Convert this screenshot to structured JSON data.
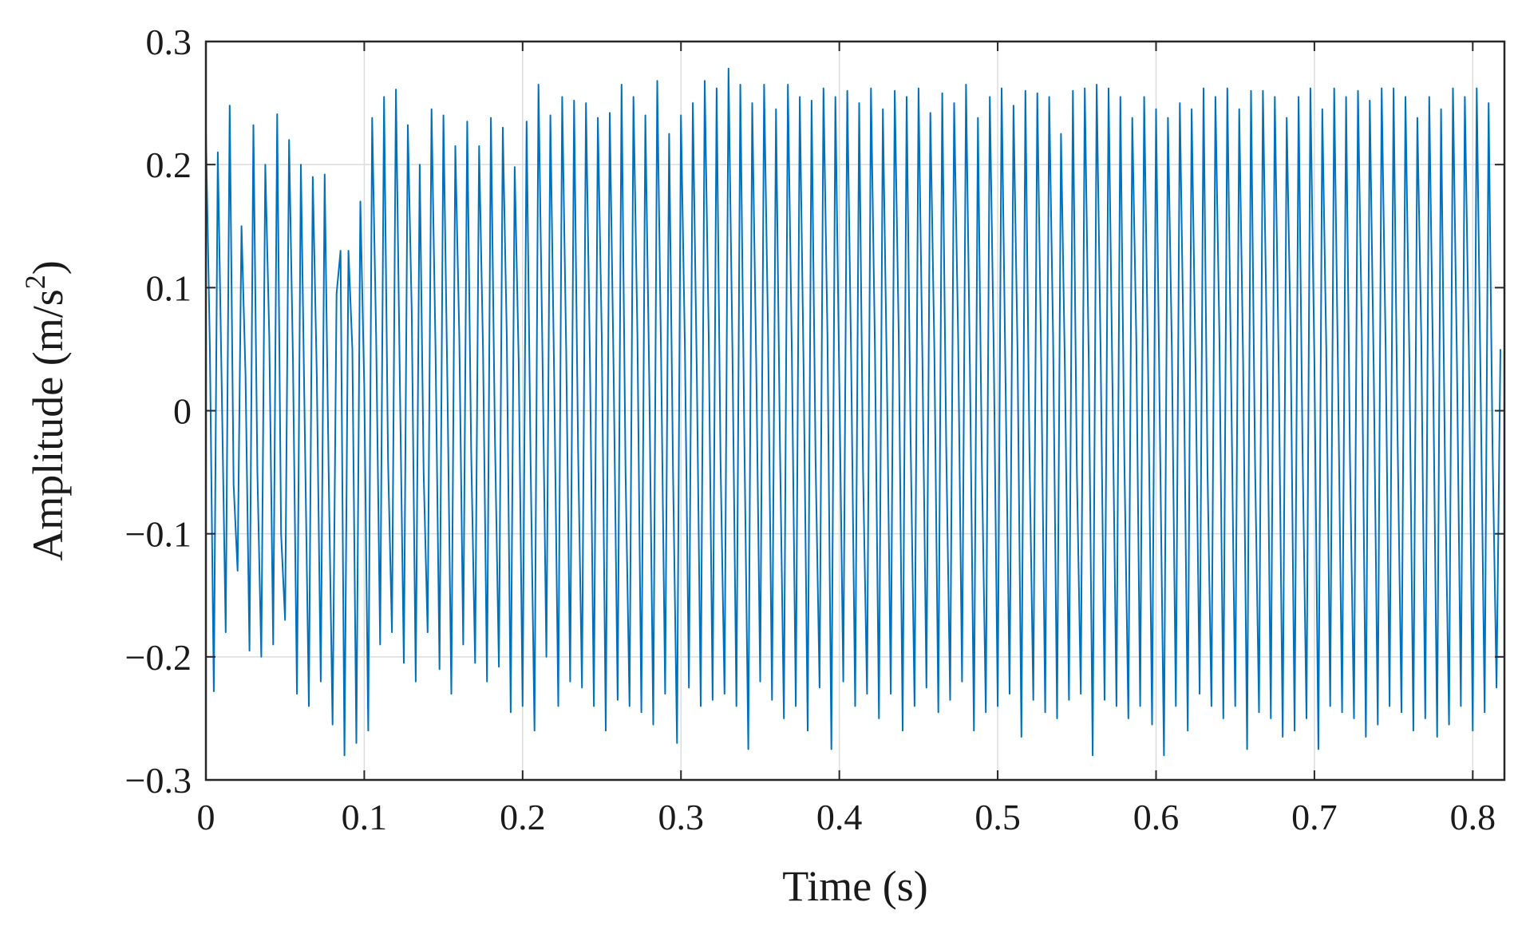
{
  "chart_data": {
    "type": "line",
    "title": "",
    "xlabel": "Time (s)",
    "ylabel_main": "Amplitude (m/s",
    "ylabel_superscript": "2",
    "ylabel_close": ")",
    "xlim": [
      0,
      0.82
    ],
    "ylim": [
      -0.3,
      0.3
    ],
    "grid": true,
    "line_color": "#0072BD",
    "x_ticks": [
      0,
      0.1,
      0.2,
      0.3,
      0.4,
      0.5,
      0.6,
      0.7,
      0.8
    ],
    "x_tick_labels": [
      "0",
      "0.1",
      "0.2",
      "0.3",
      "0.4",
      "0.5",
      "0.6",
      "0.7",
      "0.8"
    ],
    "y_ticks": [
      0.3,
      0.2,
      0.1,
      0,
      -0.1,
      -0.2,
      -0.3
    ],
    "y_tick_labels": [
      "0.3",
      "0.2",
      "0.1",
      "0",
      "−0.1",
      "−0.2",
      "−0.3"
    ],
    "series": [
      {
        "x_start": 0,
        "x_step": 0.0025,
        "y": [
          0.227,
          0.05,
          -0.228,
          0.21,
          0.02,
          -0.18,
          0.248,
          -0.06,
          -0.13,
          0.15,
          0.03,
          -0.195,
          0.232,
          -0.05,
          -0.2,
          0.2,
          0.06,
          -0.19,
          0.241,
          -0.1,
          -0.17,
          0.22,
          0.04,
          -0.23,
          0.2,
          -0.02,
          -0.24,
          0.19,
          0.03,
          -0.22,
          0.192,
          -0.05,
          -0.255,
          0.095,
          0.13,
          -0.28,
          0.13,
          0.05,
          -0.27,
          0.17,
          0.02,
          -0.26,
          0.238,
          0.06,
          -0.19,
          0.255,
          -0.04,
          -0.18,
          0.261,
          0.02,
          -0.205,
          0.232,
          0.08,
          -0.22,
          0.2,
          -0.05,
          -0.18,
          0.245,
          0.05,
          -0.21,
          0.24,
          0.02,
          -0.23,
          0.215,
          0.06,
          -0.19,
          0.235,
          -0.03,
          -0.205,
          0.215,
          0.05,
          -0.22,
          0.238,
          -0.02,
          -0.208,
          0.23,
          0.06,
          -0.245,
          0.198,
          0.04,
          -0.24,
          0.235,
          -0.04,
          -0.26,
          0.265,
          0.05,
          -0.2,
          0.24,
          0.02,
          -0.24,
          0.255,
          0.05,
          -0.22,
          0.252,
          -0.03,
          -0.225,
          0.25,
          0.04,
          -0.24,
          0.238,
          0.06,
          -0.26,
          0.242,
          0.03,
          -0.235,
          0.265,
          -0.05,
          -0.24,
          0.255,
          0.06,
          -0.245,
          0.24,
          0.02,
          -0.255,
          0.268,
          0.04,
          -0.23,
          0.225,
          -0.05,
          -0.27,
          0.24,
          0.05,
          -0.225,
          0.25,
          0.03,
          -0.24,
          0.268,
          0.06,
          -0.235,
          0.262,
          -0.04,
          -0.23,
          0.278,
          0.05,
          -0.24,
          0.265,
          -0.02,
          -0.275,
          0.25,
          0.04,
          -0.22,
          0.265,
          0.06,
          -0.235,
          0.245,
          -0.03,
          -0.25,
          0.265,
          0.05,
          -0.24,
          0.255,
          0.03,
          -0.26,
          0.252,
          -0.04,
          -0.225,
          0.262,
          0.06,
          -0.275,
          0.255,
          0.02,
          -0.22,
          0.26,
          0.04,
          -0.24,
          0.25,
          -0.05,
          -0.23,
          0.262,
          0.05,
          -0.25,
          0.245,
          0.03,
          -0.23,
          0.26,
          0.06,
          -0.26,
          0.255,
          -0.02,
          -0.24,
          0.262,
          0.04,
          -0.225,
          0.242,
          0.05,
          -0.245,
          0.258,
          -0.03,
          -0.235,
          0.25,
          0.06,
          -0.22,
          0.265,
          0.03,
          -0.26,
          0.238,
          -0.04,
          -0.245,
          0.255,
          0.05,
          -0.24,
          0.262,
          0.02,
          -0.23,
          0.248,
          0.05,
          -0.265,
          0.26,
          -0.03,
          -0.235,
          0.258,
          0.04,
          -0.245,
          0.255,
          0.06,
          -0.25,
          0.225,
          0.03,
          -0.235,
          0.26,
          -0.05,
          -0.23,
          0.262,
          0.04,
          -0.28,
          0.265,
          0.05,
          -0.235,
          0.262,
          0.02,
          -0.24,
          0.255,
          -0.04,
          -0.25,
          0.238,
          0.06,
          -0.24,
          0.255,
          0.03,
          -0.255,
          0.245,
          -0.02,
          -0.28,
          0.238,
          0.05,
          -0.24,
          0.25,
          0.04,
          -0.26,
          0.245,
          0.03,
          -0.23,
          0.262,
          -0.05,
          -0.24,
          0.255,
          0.06,
          -0.25,
          0.262,
          0.02,
          -0.24,
          0.245,
          0.04,
          -0.275,
          0.26,
          -0.04,
          -0.245,
          0.26,
          0.05,
          -0.25,
          0.255,
          0.03,
          -0.265,
          0.238,
          0.06,
          -0.26,
          0.255,
          -0.03,
          -0.25,
          0.262,
          0.04,
          -0.275,
          0.245,
          0.05,
          -0.24,
          0.262,
          0.02,
          -0.245,
          0.255,
          -0.04,
          -0.25,
          0.26,
          0.06,
          -0.265,
          0.252,
          0.03,
          -0.255,
          0.262,
          0.05,
          -0.24,
          0.262,
          -0.02,
          -0.245,
          0.255,
          0.04,
          -0.26,
          0.238,
          0.06,
          -0.25,
          0.255,
          0.03,
          -0.265,
          0.245,
          -0.05,
          -0.255,
          0.262,
          0.04,
          -0.24,
          0.255,
          0.05,
          -0.26,
          0.262,
          0.02,
          -0.245,
          0.25,
          -0.03,
          -0.225,
          0.05
        ]
      }
    ]
  }
}
